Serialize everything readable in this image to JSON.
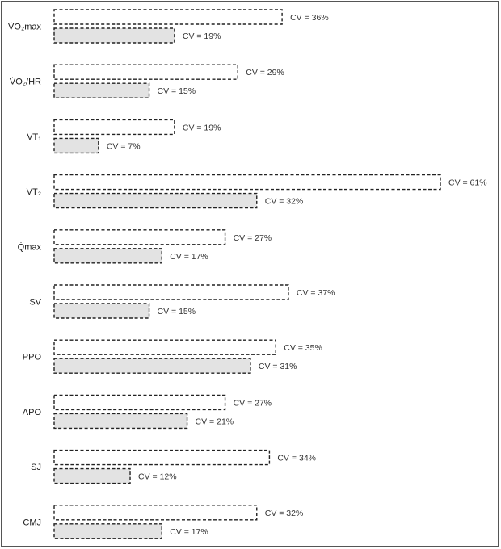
{
  "chart_data": {
    "type": "bar",
    "orientation": "horizontal",
    "categories": [
      "V̇O₂max",
      "V̇O₂/HR",
      "VT₁",
      "VT₂",
      "Q̇max",
      "SV",
      "PPO",
      "APO",
      "SJ",
      "CMJ"
    ],
    "series": [
      {
        "values": [
          36,
          29,
          19,
          61,
          27,
          37,
          35,
          27,
          34,
          32
        ],
        "fill": "#ffffff"
      },
      {
        "values": [
          19,
          15,
          7,
          32,
          17,
          15,
          31,
          21,
          12,
          17
        ],
        "fill": "#e3e3e3"
      }
    ],
    "value_label_prefix": "CV = ",
    "value_label_suffix": "%",
    "xlim": [
      0,
      61
    ],
    "grid": false,
    "bar_stroke": "dashed",
    "stroke_color": "#222222"
  }
}
